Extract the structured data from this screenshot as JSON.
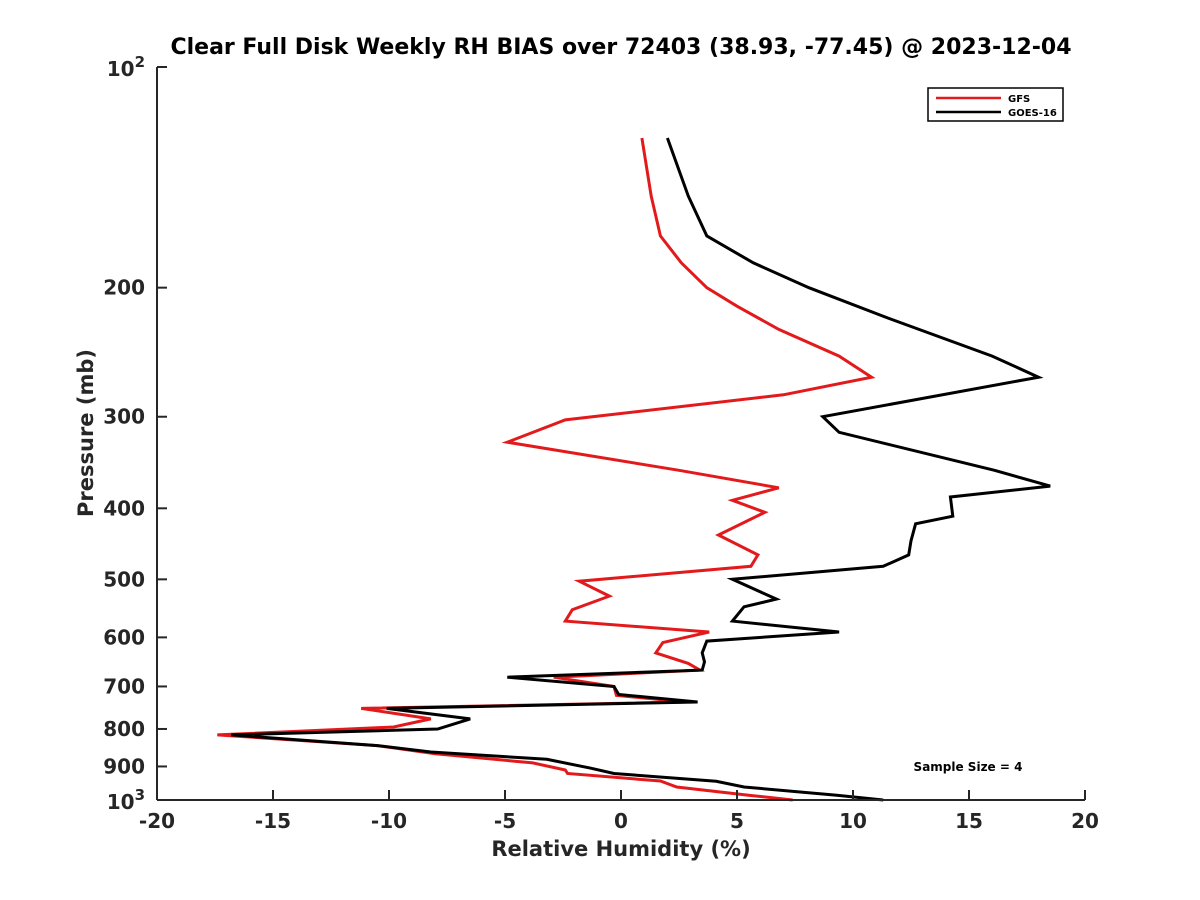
{
  "chart_data": {
    "type": "line",
    "title": "Clear Full Disk Weekly RH BIAS over 72403 (38.93, -77.45) @ 2023-12-04",
    "xlabel": "Relative Humidity (%)",
    "ylabel": "Pressure (mb)",
    "xlim": [
      -20,
      20
    ],
    "ylim": [
      100,
      1000
    ],
    "y_scale": "log",
    "y_reversed": true,
    "x_ticks": [
      -20,
      -15,
      -10,
      -5,
      0,
      5,
      10,
      15,
      20
    ],
    "x_tick_labels": [
      "-20",
      "-15",
      "-10",
      "-5",
      "0",
      "5",
      "10",
      "15",
      "20"
    ],
    "y_ticks": [
      200,
      300,
      400,
      500,
      600,
      700,
      800,
      900
    ],
    "y_tick_labels": [
      "200",
      "300",
      "400",
      "500",
      "600",
      "700",
      "800",
      "900"
    ],
    "y_decade_labels": [
      {
        "value": 100,
        "base": "10",
        "exp": "2"
      },
      {
        "value": 1000,
        "base": "10",
        "exp": "3"
      }
    ],
    "grid": false,
    "legend_position": "top-right",
    "annotation": "Sample Size = 4",
    "series": [
      {
        "name": "GFS",
        "color": "#e31a1c",
        "points": [
          [
            0.9,
            125
          ],
          [
            1.3,
            150
          ],
          [
            1.7,
            170
          ],
          [
            2.6,
            185
          ],
          [
            3.7,
            200
          ],
          [
            5.0,
            212
          ],
          [
            6.8,
            228
          ],
          [
            9.4,
            248
          ],
          [
            10.8,
            265
          ],
          [
            7.0,
            280
          ],
          [
            -2.4,
            303
          ],
          [
            -4.9,
            325
          ],
          [
            2.5,
            355
          ],
          [
            6.8,
            375
          ],
          [
            4.8,
            390
          ],
          [
            6.2,
            405
          ],
          [
            4.2,
            435
          ],
          [
            5.9,
            463
          ],
          [
            5.6,
            480
          ],
          [
            -1.8,
            503
          ],
          [
            -0.5,
            527
          ],
          [
            -2.1,
            550
          ],
          [
            -2.4,
            570
          ],
          [
            3.8,
            590
          ],
          [
            1.8,
            610
          ],
          [
            1.5,
            630
          ],
          [
            2.9,
            651
          ],
          [
            3.4,
            665
          ],
          [
            -2.9,
            680
          ],
          [
            -0.3,
            700
          ],
          [
            -0.2,
            720
          ],
          [
            2.8,
            735
          ],
          [
            -11.2,
            750
          ],
          [
            -8.2,
            775
          ],
          [
            -9.8,
            795
          ],
          [
            -17.4,
            815
          ],
          [
            -10.5,
            843
          ],
          [
            -8.0,
            865
          ],
          [
            -3.8,
            890
          ],
          [
            -2.4,
            910
          ],
          [
            -2.3,
            920
          ],
          [
            1.7,
            942
          ],
          [
            2.4,
            960
          ],
          [
            5.5,
            985
          ],
          [
            7.4,
            1000
          ]
        ]
      },
      {
        "name": "GOES-16",
        "color": "#000000",
        "points": [
          [
            2.0,
            125
          ],
          [
            2.9,
            150
          ],
          [
            3.7,
            170
          ],
          [
            5.7,
            185
          ],
          [
            8.1,
            200
          ],
          [
            11.5,
            220
          ],
          [
            16.0,
            248
          ],
          [
            18.0,
            265
          ],
          [
            8.7,
            300
          ],
          [
            9.4,
            315
          ],
          [
            16.1,
            355
          ],
          [
            18.5,
            373
          ],
          [
            14.2,
            386
          ],
          [
            14.3,
            410
          ],
          [
            12.7,
            420
          ],
          [
            12.5,
            443
          ],
          [
            12.4,
            463
          ],
          [
            11.3,
            480
          ],
          [
            4.8,
            500
          ],
          [
            6.7,
            532
          ],
          [
            5.3,
            545
          ],
          [
            4.8,
            570
          ],
          [
            9.4,
            590
          ],
          [
            3.7,
            607
          ],
          [
            3.5,
            630
          ],
          [
            3.6,
            648
          ],
          [
            3.5,
            665
          ],
          [
            -4.9,
            680
          ],
          [
            -0.3,
            700
          ],
          [
            -0.1,
            718
          ],
          [
            3.3,
            735
          ],
          [
            -10.1,
            750
          ],
          [
            -6.5,
            775
          ],
          [
            -7.9,
            800
          ],
          [
            -16.8,
            815
          ],
          [
            -10.5,
            843
          ],
          [
            -8.2,
            860
          ],
          [
            -3.2,
            880
          ],
          [
            -1.3,
            905
          ],
          [
            -0.3,
            920
          ],
          [
            4.1,
            943
          ],
          [
            5.3,
            960
          ],
          [
            9.3,
            985
          ],
          [
            11.3,
            1000
          ]
        ]
      }
    ]
  }
}
